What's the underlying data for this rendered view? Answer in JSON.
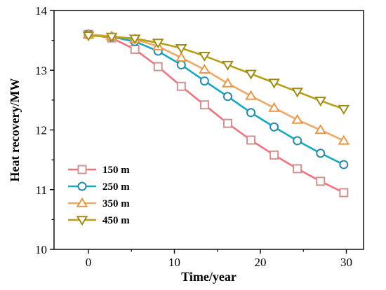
{
  "chart_data": {
    "type": "line",
    "xlabel": "Time/year",
    "ylabel": "Heat recovery/MW",
    "xlim": [
      -4,
      32
    ],
    "ylim": [
      10,
      14
    ],
    "xticks": [
      0,
      10,
      20,
      30
    ],
    "yticks": [
      10,
      11,
      12,
      13,
      14
    ],
    "grid": false,
    "legend_position": "bottom-left",
    "x": [
      0,
      2.7,
      5.4,
      8.1,
      10.8,
      13.5,
      16.2,
      18.9,
      21.6,
      24.3,
      27.0,
      29.7
    ],
    "series": [
      {
        "name": "150 m",
        "marker": "square",
        "color": "#f0727c",
        "marker_color": "#d19191",
        "values": [
          13.6,
          13.54,
          13.35,
          13.06,
          12.73,
          12.42,
          12.11,
          11.83,
          11.58,
          11.35,
          11.14,
          10.95
        ]
      },
      {
        "name": "250 m",
        "marker": "circle",
        "color": "#16a8c0",
        "marker_color": "#2b89a8",
        "values": [
          13.6,
          13.56,
          13.48,
          13.32,
          13.09,
          12.82,
          12.56,
          12.29,
          12.05,
          11.82,
          11.61,
          11.42
        ]
      },
      {
        "name": "350 m",
        "marker": "triangle-up",
        "color": "#f0a868",
        "marker_color": "#e49848",
        "values": [
          13.6,
          13.57,
          13.52,
          13.4,
          13.21,
          13.01,
          12.78,
          12.57,
          12.37,
          12.17,
          12.0,
          11.82
        ]
      },
      {
        "name": "450 m",
        "marker": "triangle-down",
        "color": "#b5a019",
        "marker_color": "#9f8c14",
        "values": [
          13.58,
          13.56,
          13.53,
          13.46,
          13.37,
          13.24,
          13.09,
          12.94,
          12.79,
          12.64,
          12.49,
          12.35
        ]
      }
    ]
  }
}
